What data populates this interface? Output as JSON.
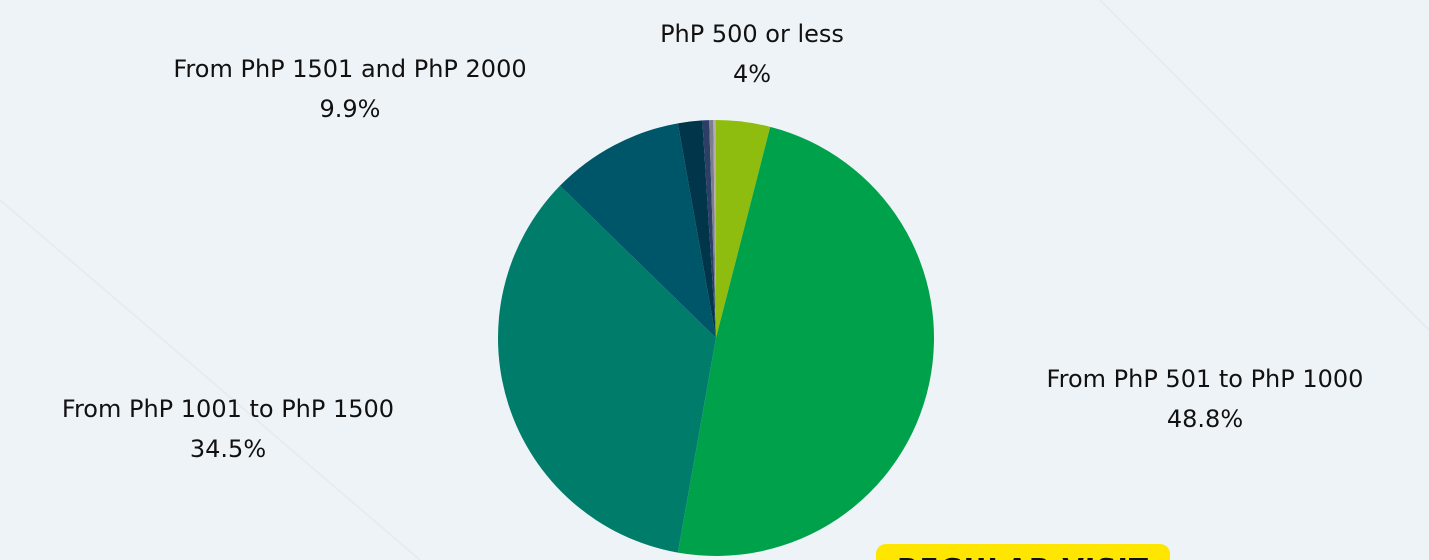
{
  "chart_data": {
    "type": "pie",
    "categories": [
      "PhP 500 or less",
      "From PhP 501 to PhP 1000",
      "From PhP 1001 to PhP 1500",
      "From PhP 1501 and PhP 2000",
      null,
      null,
      null,
      null
    ],
    "values": [
      4,
      48.8,
      34.5,
      9.9,
      1.8,
      0.5,
      0.3,
      0.2
    ],
    "value_labels": [
      "4%",
      "48.8%",
      "34.5%",
      "9.9%",
      null,
      null,
      null,
      null
    ],
    "colors": [
      "#8fbd0f",
      "#00a14b",
      "#007d6a",
      "#005669",
      "#00354a",
      "#2d3f66",
      "#7a7f8c",
      "#b9a9b0"
    ],
    "annotation": "REGULAR VISIT"
  }
}
